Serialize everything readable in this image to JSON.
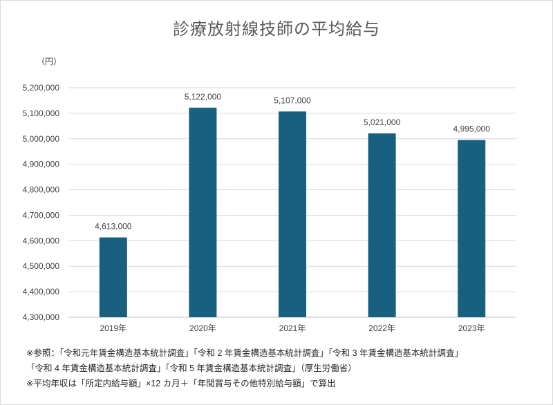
{
  "chart_data": {
    "type": "bar",
    "title": "診療放射線技師の平均給与",
    "ylabel": "（円）",
    "categories": [
      "2019年",
      "2020年",
      "2021年",
      "2022年",
      "2023年"
    ],
    "values": [
      4613000,
      5122000,
      5107000,
      5021000,
      4995000
    ],
    "data_labels": [
      "4,613,000",
      "5,122,000",
      "5,107,000",
      "5,021,000",
      "4,995,000"
    ],
    "ylim": [
      4300000,
      5200000
    ],
    "yticks": [
      4300000,
      4400000,
      4500000,
      4600000,
      4700000,
      4800000,
      4900000,
      5000000,
      5100000,
      5200000
    ],
    "ytick_labels": [
      "4,300,000",
      "4,400,000",
      "4,500,000",
      "4,600,000",
      "4,700,000",
      "4,800,000",
      "4,900,000",
      "5,000,000",
      "5,100,000",
      "5,200,000"
    ],
    "grid": true,
    "bar_color": "#17607f"
  },
  "notes": [
    "※参照：「令和元年賃金構造基本統計調査」「令和 2 年賃金構造基本統計調査」「令和 3 年賃金構造基本統計調査」",
    "「令和 4 年賃金構造基本統計調査」「令和 5 年賃金構造基本統計調査」（厚生労働省）",
    "※平均年収は「所定内給与額」×12 カ月＋「年間賞与その他特別給与額」で算出"
  ]
}
